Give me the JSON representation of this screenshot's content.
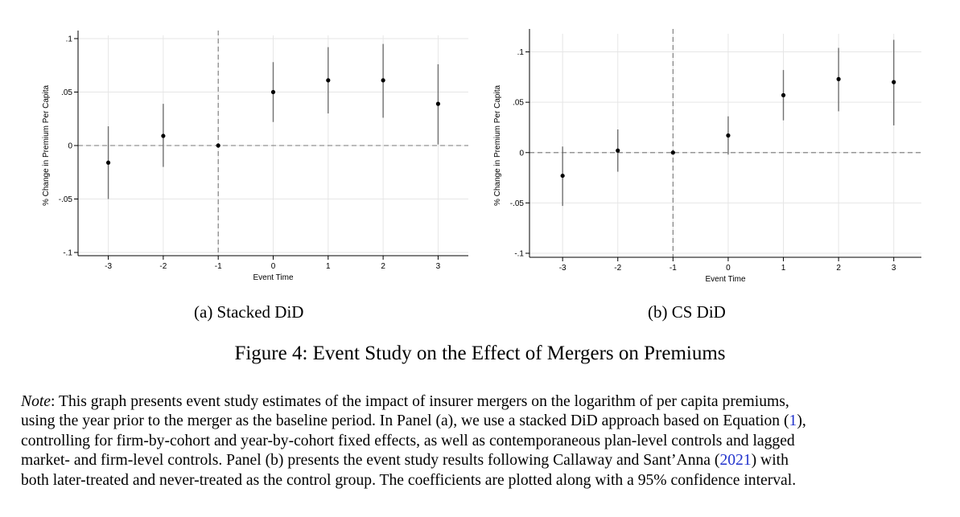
{
  "chart_data": [
    {
      "type": "scatter",
      "style": "point estimates with 95% confidence intervals",
      "panel_label": "(a) Stacked DiD",
      "xlabel": "Event Time",
      "ylabel": "% Change in Premium Per Capita",
      "x": [
        -3,
        -2,
        -1,
        0,
        1,
        2,
        3
      ],
      "y": [
        -0.016,
        0.009,
        0.0,
        0.05,
        0.061,
        0.061,
        0.039
      ],
      "ci_low": [
        -0.05,
        -0.02,
        0.0,
        0.022,
        0.03,
        0.026,
        0.001
      ],
      "ci_high": [
        0.018,
        0.039,
        0.0,
        0.078,
        0.092,
        0.095,
        0.076
      ],
      "xticks": [
        -3,
        -2,
        -1,
        0,
        1,
        2,
        3
      ],
      "xtick_labels": [
        "-3",
        "-2",
        "-1",
        "0",
        "1",
        "2",
        "3"
      ],
      "yticks": [
        -0.1,
        -0.05,
        0,
        0.05,
        0.1
      ],
      "ytick_labels": [
        "-.1",
        "-.05",
        "0",
        ".05",
        ".1"
      ],
      "xlim": [
        -3.55,
        3.55
      ],
      "ylim": [
        -0.103,
        0.103
      ],
      "reference_x": -1,
      "reference_y": 0,
      "grid": true
    },
    {
      "type": "scatter",
      "style": "point estimates with 95% confidence intervals",
      "panel_label": "(b) CS DiD",
      "xlabel": "Event Time",
      "ylabel": "% Change in Premium Per Capita",
      "x": [
        -3,
        -2,
        -1,
        0,
        1,
        2,
        3
      ],
      "y": [
        -0.023,
        0.002,
        0.0,
        0.017,
        0.057,
        0.073,
        0.07
      ],
      "ci_low": [
        -0.053,
        -0.019,
        0.0,
        -0.002,
        0.032,
        0.041,
        0.027
      ],
      "ci_high": [
        0.006,
        0.023,
        0.0,
        0.036,
        0.082,
        0.104,
        0.112
      ],
      "xticks": [
        -3,
        -2,
        -1,
        0,
        1,
        2,
        3
      ],
      "xtick_labels": [
        "-3",
        "-2",
        "-1",
        "0",
        "1",
        "2",
        "3"
      ],
      "yticks": [
        -0.1,
        -0.05,
        0,
        0.05,
        0.1
      ],
      "ytick_labels": [
        "-.1",
        "-.05",
        "0",
        ".05",
        ".1"
      ],
      "xlim": [
        -3.6,
        3.5
      ],
      "ylim": [
        -0.104,
        0.118
      ],
      "reference_x": -1,
      "reference_y": 0,
      "grid": true
    }
  ],
  "figure_caption": "Figure 4: Event Study on the Effect of Mergers on Premiums",
  "note": {
    "lead": "Note",
    "line1_rest": ": This graph presents event study estimates of the impact of insurer mergers on the logarithm of per capita premiums,",
    "line2": "using the year prior to the merger as the baseline period. In Panel (a), we use a stacked DiD approach based on Equation ",
    "line2_open": "(",
    "equation_ref": "1",
    "line2_close": "),",
    "line3": "controlling for firm-by-cohort and year-by-cohort fixed effects, as well as contemporaneous plan-level controls and lagged",
    "line4_start": "market- and firm-level controls.  Panel (b) presents the event study results following Callaway and Sant’Anna ",
    "line4_open": "(",
    "citation_year": "2021",
    "line4_close": ") with",
    "line5": "both later-treated and never-treated as the control group. The coefficients are plotted along with a 95% confidence interval."
  },
  "colors": {
    "marker": "#000000",
    "ci_line": "#707070",
    "reference_line": "#777777",
    "grid": "#e6e6e6",
    "citation": "#2233cc"
  }
}
